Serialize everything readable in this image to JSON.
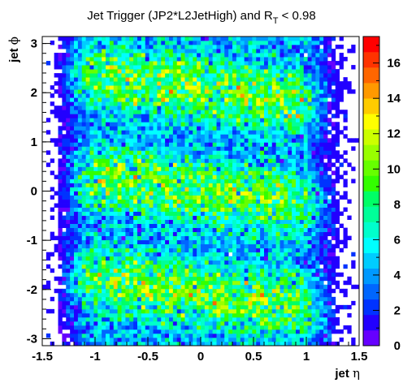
{
  "chart_data": {
    "type": "heatmap",
    "title": {
      "main": "Jet Trigger (JP2*L2JetHigh) and R",
      "sub": "T",
      "tail": " < 0.98"
    },
    "xlabel": {
      "text": "jet ",
      "symbol": "η"
    },
    "ylabel": {
      "text": "jet ",
      "symbol": "ϕ"
    },
    "xlim": [
      -1.5,
      1.5
    ],
    "ylim": [
      -3.14159,
      3.14159
    ],
    "zlim": [
      0,
      17.5
    ],
    "x_ticks": [
      {
        "value": -1.5,
        "label": "-1.5"
      },
      {
        "value": -1.0,
        "label": "-1"
      },
      {
        "value": -0.5,
        "label": "-0.5"
      },
      {
        "value": 0.0,
        "label": "0"
      },
      {
        "value": 0.5,
        "label": "0.5"
      },
      {
        "value": 1.0,
        "label": "1"
      },
      {
        "value": 1.5,
        "label": "1.5"
      }
    ],
    "y_ticks": [
      {
        "value": -3,
        "label": "-3"
      },
      {
        "value": -2,
        "label": "-2"
      },
      {
        "value": -1,
        "label": "-1"
      },
      {
        "value": 0,
        "label": "0"
      },
      {
        "value": 1,
        "label": "1"
      },
      {
        "value": 2,
        "label": "2"
      },
      {
        "value": 3,
        "label": "3"
      }
    ],
    "z_ticks": [
      {
        "value": 0,
        "label": "0"
      },
      {
        "value": 2,
        "label": "2"
      },
      {
        "value": 4,
        "label": "4"
      },
      {
        "value": 6,
        "label": "6"
      },
      {
        "value": 8,
        "label": "8"
      },
      {
        "value": 10,
        "label": "10"
      },
      {
        "value": 12,
        "label": "12"
      },
      {
        "value": 14,
        "label": "14"
      },
      {
        "value": 16,
        "label": "16"
      }
    ],
    "palette": [
      "#6600ff",
      "#2200ff",
      "#0033ff",
      "#0066ff",
      "#0099ff",
      "#00ccff",
      "#00ffff",
      "#00ffcc",
      "#00ff99",
      "#00ff66",
      "#33ff00",
      "#66ff00",
      "#99ff00",
      "#ccff00",
      "#ffff00",
      "#ffcc00",
      "#ff9900",
      "#ff6600",
      "#ff3300",
      "#ff0000"
    ],
    "bins": {
      "nx": 80,
      "ny": 76,
      "eta_profile": [
        {
          "eta": -1.5,
          "density": 0.0
        },
        {
          "eta": -1.35,
          "density": 0.05
        },
        {
          "eta": -1.2,
          "density": 0.45
        },
        {
          "eta": -1.05,
          "density": 0.9
        },
        {
          "eta": -0.85,
          "density": 1.0
        },
        {
          "eta": 0.85,
          "density": 1.0
        },
        {
          "eta": 1.0,
          "density": 0.85
        },
        {
          "eta": 1.15,
          "density": 0.4
        },
        {
          "eta": 1.3,
          "density": 0.08
        },
        {
          "eta": 1.5,
          "density": 0.0
        }
      ],
      "peak_mean": 7.0,
      "phi_modulation": 0.35
    }
  }
}
